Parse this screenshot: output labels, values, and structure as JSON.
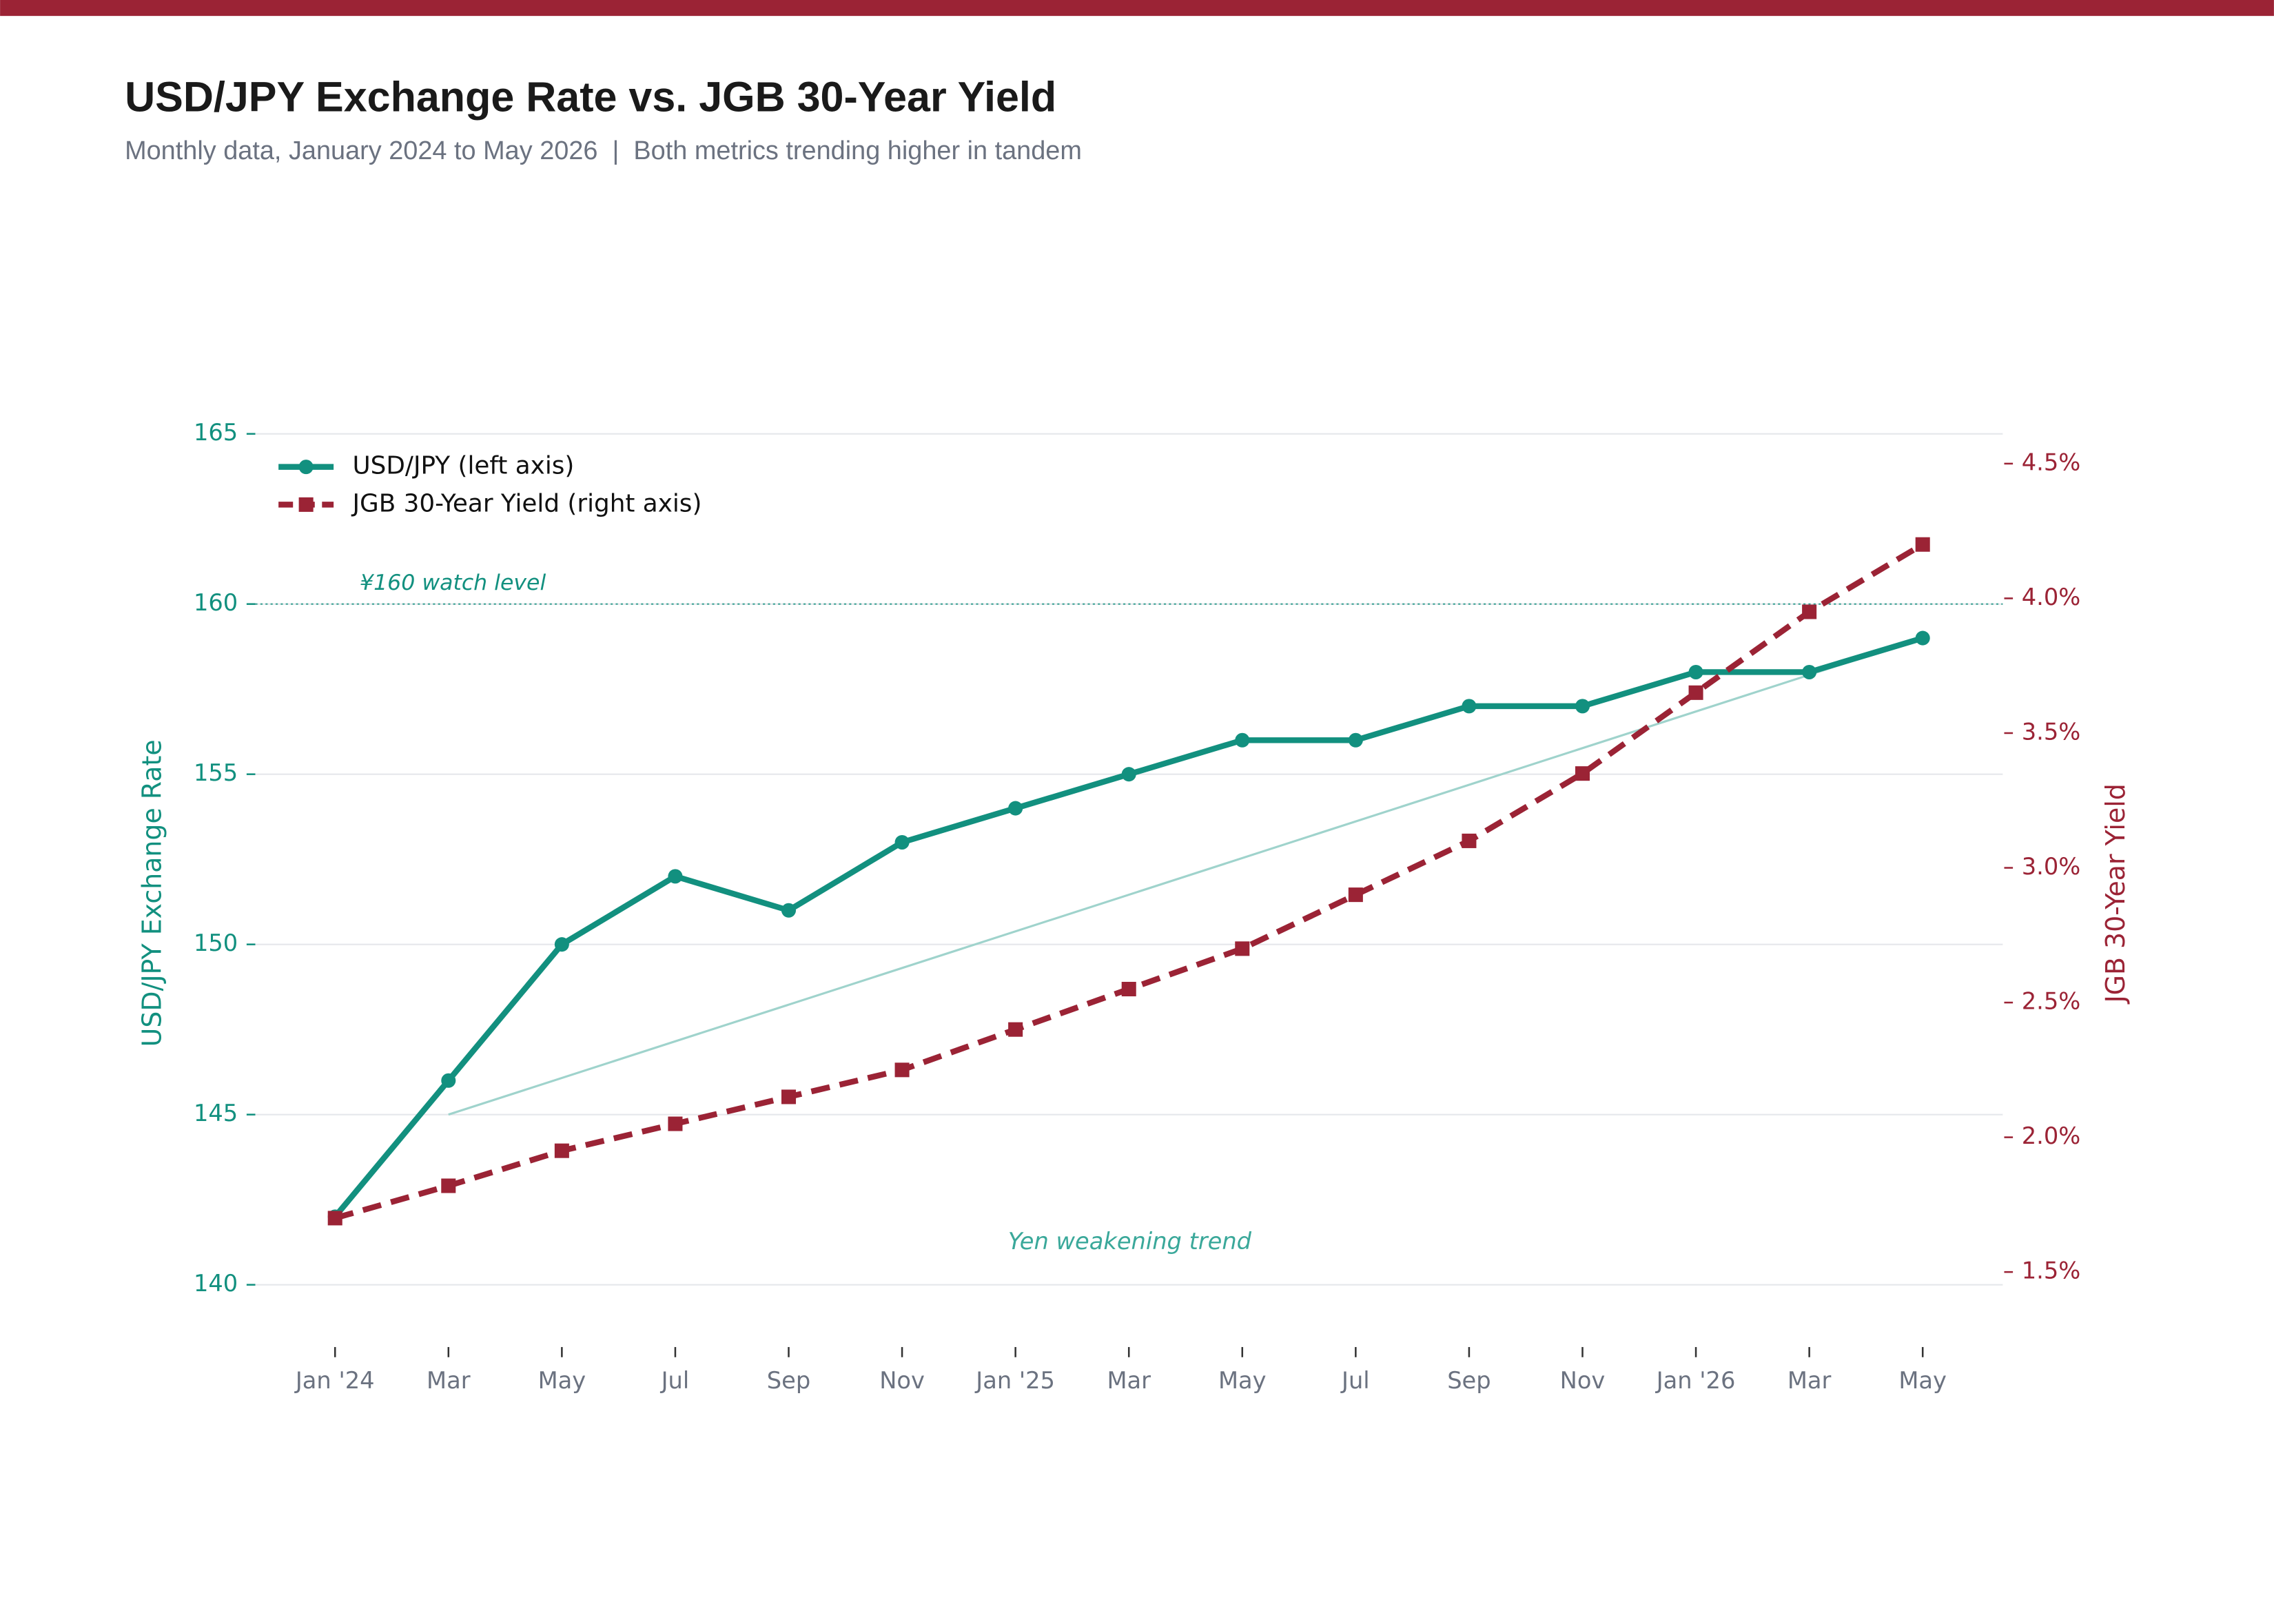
{
  "chart_data": {
    "type": "line",
    "title": "USD/JPY Exchange Rate vs. JGB 30-Year Yield",
    "subtitle": "Monthly data, January 2024 to May 2026  |  Both metrics trending higher in tandem",
    "categories": [
      "Jan '24",
      "Mar",
      "May",
      "Jul",
      "Sep",
      "Nov",
      "Jan '25",
      "Mar",
      "May",
      "Jul",
      "Sep",
      "Nov",
      "Jan '26",
      "Mar",
      "May"
    ],
    "series": [
      {
        "name": "USD/JPY (left axis)",
        "color": "#12907f",
        "axis": "y",
        "marker": "circle",
        "dash": false,
        "values": [
          142,
          146,
          150,
          152,
          151,
          153,
          154,
          155,
          156,
          156,
          157,
          157,
          158,
          158,
          159
        ]
      },
      {
        "name": "JGB 30-Year Yield (right axis)",
        "color": "#9b2335",
        "axis": "y2",
        "marker": "square",
        "dash": true,
        "values": [
          1.7,
          1.82,
          1.95,
          2.05,
          2.15,
          2.25,
          2.4,
          2.55,
          2.7,
          2.9,
          3.1,
          3.35,
          3.65,
          3.95,
          4.2
        ]
      }
    ],
    "ylabel": "USD/JPY Exchange Rate",
    "y2label": "JGB 30-Year Yield",
    "ylim": [
      138,
      166.5
    ],
    "yticks": [
      140,
      145,
      150,
      155,
      160,
      165
    ],
    "y2lim": [
      1.2,
      4.8
    ],
    "y2ticks": [
      {
        "value": 1.5,
        "label": "1.5%"
      },
      {
        "value": 2.0,
        "label": "2.0%"
      },
      {
        "value": 2.5,
        "label": "2.5%"
      },
      {
        "value": 3.0,
        "label": "3.0%"
      },
      {
        "value": 3.5,
        "label": "3.5%"
      },
      {
        "value": 4.0,
        "label": "4.0%"
      },
      {
        "value": 4.5,
        "label": "4.5%"
      }
    ],
    "grid": true,
    "legend": "upper-left",
    "hline": {
      "value": 160,
      "label": "¥160 watch level",
      "color": "#12907f"
    },
    "trend": {
      "label": "Yen weakening trend",
      "color": "#9fd3cc",
      "from": [
        1,
        145
      ],
      "to": [
        13.4,
        158.35
      ]
    }
  }
}
